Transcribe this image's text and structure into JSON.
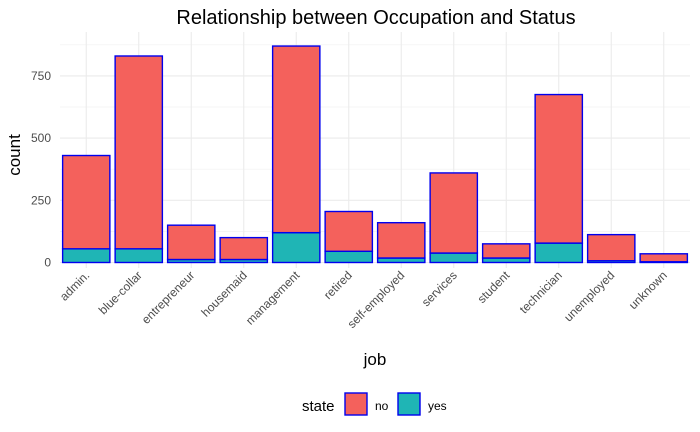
{
  "chart_data": {
    "type": "bar",
    "stacked": true,
    "title": "Relationship between Occupation and Status",
    "xlabel": "job",
    "ylabel": "count",
    "categories": [
      "admin.",
      "blue-collar",
      "entrepreneur",
      "housemaid",
      "management",
      "retired",
      "self-employed",
      "services",
      "student",
      "technician",
      "unemployed",
      "unknown"
    ],
    "series": [
      {
        "name": "yes",
        "color": "#1fb5b5",
        "values": [
          55,
          55,
          12,
          12,
          120,
          45,
          18,
          38,
          18,
          78,
          7,
          3
        ]
      },
      {
        "name": "no",
        "color": "#f4615c",
        "values": [
          375,
          775,
          138,
          88,
          750,
          160,
          142,
          322,
          57,
          597,
          105,
          32
        ]
      }
    ],
    "bar_outline_color": "#0000ee",
    "yticks": [
      0,
      250,
      500,
      750
    ],
    "ylim": [
      0,
      940
    ],
    "grid": true,
    "legend": {
      "title": "state",
      "position": "bottom",
      "items": [
        {
          "label": "no",
          "color": "#f4615c"
        },
        {
          "label": "yes",
          "color": "#1fb5b5"
        }
      ]
    }
  }
}
